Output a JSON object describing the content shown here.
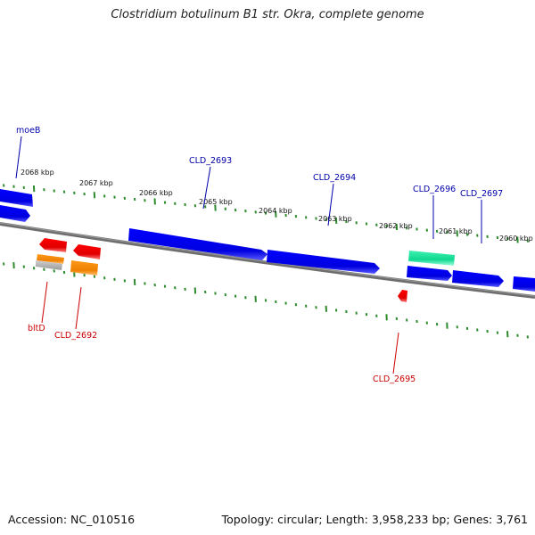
{
  "title": "Clostridium botulinum B1 str. Okra, complete genome",
  "footer": {
    "accession": "Accession: NC_010516",
    "topology": "Topology: circular; Length: 3,958,233 bp; Genes: 3,761"
  },
  "colors": {
    "backbone": "#7a7a7a",
    "tick": "#2e8b2e",
    "forward_gene": "#0000ee",
    "reverse_gene": "#ee0000",
    "orange_gene": "#ff8c00",
    "teal_gene": "#1ee8a0",
    "forward_label": "#0000aa",
    "reverse_label": "#cc0000"
  },
  "scale_labels": [
    "2068 kbp",
    "2067 kbp",
    "2066 kbp",
    "2065 kbp",
    "2064 kbp",
    "2063 kbp",
    "2062 kbp",
    "2061 kbp",
    "2060 kbp"
  ],
  "forward_gene_labels": [
    "moeB",
    "CLD_2693",
    "CLD_2694",
    "CLD_2696",
    "CLD_2697"
  ],
  "reverse_gene_labels": [
    "bltD",
    "CLD_2692",
    "CLD_2695"
  ]
}
